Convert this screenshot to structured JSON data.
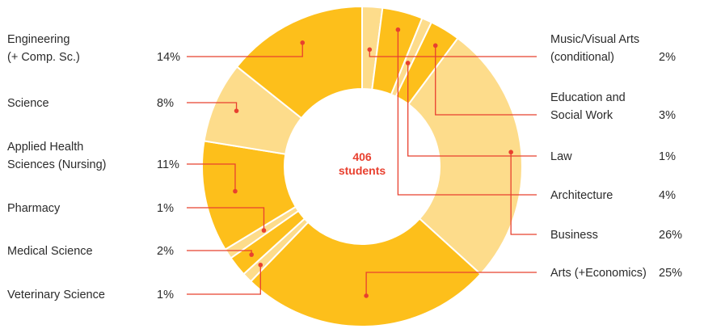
{
  "chart_data": {
    "type": "pie",
    "donut": true,
    "center_label": {
      "value": "406",
      "unit": "students"
    },
    "colors": {
      "dark": "#FDBF1B",
      "light": "#FDDC8B",
      "accent": "#E8402F",
      "text": "#2b2b2b"
    },
    "slices": [
      {
        "name": "Music/Visual Arts (conditional)",
        "lines": [
          "Music/Visual Arts",
          "(conditional)"
        ],
        "value": 2,
        "pct_label": "2%",
        "shade": "light"
      },
      {
        "name": "Architecture",
        "lines": [
          "Architecture"
        ],
        "value": 4,
        "pct_label": "4%",
        "shade": "dark"
      },
      {
        "name": "Law",
        "lines": [
          "Law"
        ],
        "value": 1,
        "pct_label": "1%",
        "shade": "light"
      },
      {
        "name": "Education and Social Work",
        "lines": [
          "Education and",
          "Social Work"
        ],
        "value": 3,
        "pct_label": "3%",
        "shade": "dark"
      },
      {
        "name": "Business",
        "lines": [
          "Business"
        ],
        "value": 26,
        "pct_label": "26%",
        "shade": "light"
      },
      {
        "name": "Arts (+Economics)",
        "lines": [
          "Arts (+Economics)"
        ],
        "value": 25,
        "pct_label": "25%",
        "shade": "dark"
      },
      {
        "name": "Veterinary Science",
        "lines": [
          "Veterinary Science"
        ],
        "value": 1,
        "pct_label": "1%",
        "shade": "light"
      },
      {
        "name": "Medical Science",
        "lines": [
          "Medical Science"
        ],
        "value": 2,
        "pct_label": "2%",
        "shade": "dark"
      },
      {
        "name": "Pharmacy",
        "lines": [
          "Pharmacy"
        ],
        "value": 1,
        "pct_label": "1%",
        "shade": "light"
      },
      {
        "name": "Applied Health Sciences (Nursing)",
        "lines": [
          "Applied Health",
          "Sciences (Nursing)"
        ],
        "value": 11,
        "pct_label": "11%",
        "shade": "dark"
      },
      {
        "name": "Science",
        "lines": [
          "Science"
        ],
        "value": 8,
        "pct_label": "8%",
        "shade": "light"
      },
      {
        "name": "Engineering (+ Comp. Sc.)",
        "lines": [
          "Engineering",
          "(+ Comp. Sc.)"
        ],
        "value": 14,
        "pct_label": "14%",
        "shade": "dark"
      }
    ],
    "legend_left": [
      "Engineering (+ Comp. Sc.)",
      "Science",
      "Applied Health Sciences (Nursing)",
      "Pharmacy",
      "Medical Science",
      "Veterinary Science"
    ],
    "legend_right": [
      "Music/Visual Arts (conditional)",
      "Education and Social Work",
      "Law",
      "Architecture",
      "Business",
      "Arts (+Economics)"
    ]
  }
}
